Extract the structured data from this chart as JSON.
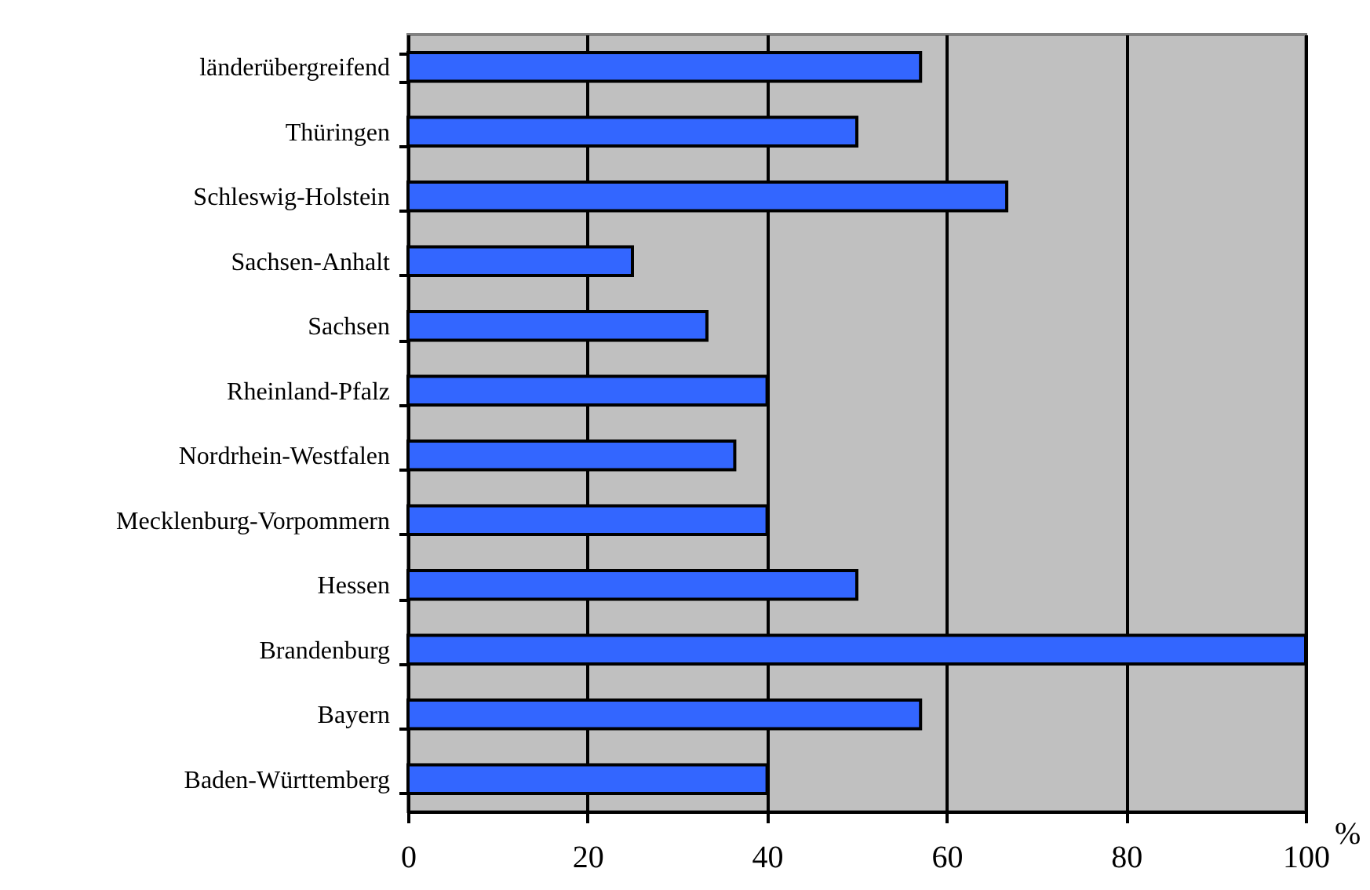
{
  "chart_data": {
    "type": "bar",
    "orientation": "horizontal",
    "xlabel": "%",
    "categories": [
      "länderübergreifend",
      "Thüringen",
      "Schleswig-Holstein",
      "Sachsen-Anhalt",
      "Sachsen",
      "Rheinland-Pfalz",
      "Nordrhein-Westfalen",
      "Mecklenburg-Vorpommern",
      "Hessen",
      "Brandenburg",
      "Bayern",
      "Baden-Württemberg"
    ],
    "values": [
      57.1,
      50,
      66.7,
      25,
      33.3,
      40,
      36.4,
      40,
      50,
      100,
      57.1,
      40
    ],
    "color": "#3366ff",
    "xlim": [
      0,
      100
    ],
    "xticks": [
      0,
      20,
      40,
      60,
      80,
      100
    ],
    "grid": "x"
  }
}
